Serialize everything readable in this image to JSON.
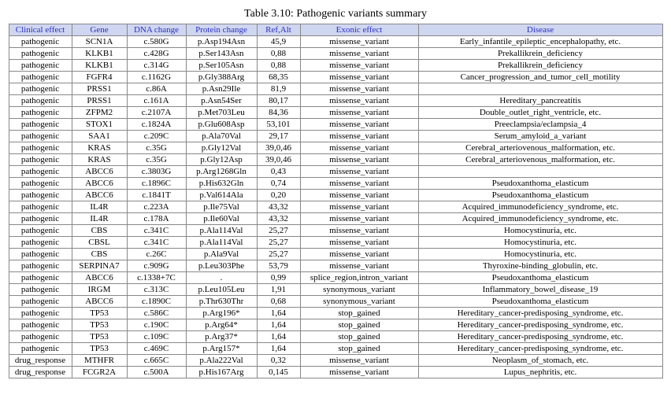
{
  "caption": "Table 3.10: Pathogenic variants summary",
  "headers": [
    "Clinical effect",
    "Gene",
    "DNA change",
    "Protein change",
    "Ref,Alt",
    "Exonic effect",
    "Disease"
  ],
  "header_bg": "#cfd6f0",
  "header_fg": "#2a2fbf",
  "border_color": "#888888",
  "font_family": "Times New Roman",
  "rows": [
    [
      "pathogenic",
      "SCN1A",
      "c.580G",
      "p.Asp194Asn",
      "45,9",
      "missense_variant",
      "Early_infantile_epileptic_encephalopathy, etc."
    ],
    [
      "pathogenic",
      "KLKB1",
      "c.428G",
      "p.Ser143Asn",
      "0,88",
      "missense_variant",
      "Prekallikrein_deficiency"
    ],
    [
      "pathogenic",
      "KLKB1",
      "c.314G",
      "p.Ser105Asn",
      "0,88",
      "missense_variant",
      "Prekallikrein_deficiency"
    ],
    [
      "pathogenic",
      "FGFR4",
      "c.1162G",
      "p.Gly388Arg",
      "68,35",
      "missense_variant",
      "Cancer_progression_and_tumor_cell_motility"
    ],
    [
      "pathogenic",
      "PRSS1",
      "c.86A",
      "p.Asn29Ile",
      "81,9",
      "missense_variant",
      ""
    ],
    [
      "pathogenic",
      "PRSS1",
      "c.161A",
      "p.Asn54Ser",
      "80,17",
      "missense_variant",
      "Hereditary_pancreatitis"
    ],
    [
      "pathogenic",
      "ZFPM2",
      "c.2107A",
      "p.Met703Leu",
      "84,36",
      "missense_variant",
      "Double_outlet_right_ventricle, etc."
    ],
    [
      "pathogenic",
      "STOX1",
      "c.1824A",
      "p.Glu608Asp",
      "53,101",
      "missense_variant",
      "Preeclampsia/eclampsia_4"
    ],
    [
      "pathogenic",
      "SAA1",
      "c.209C",
      "p.Ala70Val",
      "29,17",
      "missense_variant",
      "Serum_amyloid_a_variant"
    ],
    [
      "pathogenic",
      "KRAS",
      "c.35G",
      "p.Gly12Val",
      "39,0,46",
      "missense_variant",
      "Cerebral_arteriovenous_malformation, etc."
    ],
    [
      "pathogenic",
      "KRAS",
      "c.35G",
      "p.Gly12Asp",
      "39,0,46",
      "missense_variant",
      "Cerebral_arteriovenous_malformation, etc."
    ],
    [
      "pathogenic",
      "ABCC6",
      "c.3803G",
      "p.Arg1268Gln",
      "0,43",
      "missense_variant",
      ""
    ],
    [
      "pathogenic",
      "ABCC6",
      "c.1896C",
      "p.His632Gln",
      "0,74",
      "missense_variant",
      "Pseudoxanthoma_elasticum"
    ],
    [
      "pathogenic",
      "ABCC6",
      "c.1841T",
      "p.Val614Ala",
      "0,20",
      "missense_variant",
      "Pseudoxanthoma_elasticum"
    ],
    [
      "pathogenic",
      "IL4R",
      "c.223A",
      "p.Ile75Val",
      "43,32",
      "missense_variant",
      "Acquired_immunodeficiency_syndrome, etc."
    ],
    [
      "pathogenic",
      "IL4R",
      "c.178A",
      "p.Ile60Val",
      "43,32",
      "missense_variant",
      "Acquired_immunodeficiency_syndrome, etc."
    ],
    [
      "pathogenic",
      "CBS",
      "c.341C",
      "p.Ala114Val",
      "25,27",
      "missense_variant",
      "Homocystinuria, etc."
    ],
    [
      "pathogenic",
      "CBSL",
      "c.341C",
      "p.Ala114Val",
      "25,27",
      "missense_variant",
      "Homocystinuria, etc."
    ],
    [
      "pathogenic",
      "CBS",
      "c.26C",
      "p.Ala9Val",
      "25,27",
      "missense_variant",
      "Homocystinuria, etc."
    ],
    [
      "pathogenic",
      "SERPINA7",
      "c.909G",
      "p.Leu303Phe",
      "53,79",
      "missense_variant",
      "Thyroxine-binding_globulin, etc."
    ],
    [
      "pathogenic",
      "ABCC6",
      "c.1338+7C",
      ".",
      "0,99",
      "splice_region,intron_variant",
      "Pseudoxanthoma_elasticum"
    ],
    [
      "pathogenic",
      "IRGM",
      "c.313C",
      "p.Leu105Leu",
      "1,91",
      "synonymous_variant",
      "Inflammatory_bowel_disease_19"
    ],
    [
      "pathogenic",
      "ABCC6",
      "c.1890C",
      "p.Thr630Thr",
      "0,68",
      "synonymous_variant",
      "Pseudoxanthoma_elasticum"
    ],
    [
      "pathogenic",
      "TP53",
      "c.586C",
      "p.Arg196*",
      "1,64",
      "stop_gained",
      "Hereditary_cancer-predisposing_syndrome, etc."
    ],
    [
      "pathogenic",
      "TP53",
      "c.190C",
      "p.Arg64*",
      "1,64",
      "stop_gained",
      "Hereditary_cancer-predisposing_syndrome, etc."
    ],
    [
      "pathogenic",
      "TP53",
      "c.109C",
      "p.Arg37*",
      "1,64",
      "stop_gained",
      "Hereditary_cancer-predisposing_syndrome, etc."
    ],
    [
      "pathogenic",
      "TP53",
      "c.469C",
      "p.Arg157*",
      "1,64",
      "stop_gained",
      "Hereditary_cancer-predisposing_syndrome, etc."
    ],
    [
      "drug_response",
      "MTHFR",
      "c.665C",
      "p.Ala222Val",
      "0,32",
      "missense_variant",
      "Neoplasm_of_stomach, etc."
    ],
    [
      "drug_response",
      "FCGR2A",
      "c.500A",
      "p.His167Arg",
      "0,145",
      "missense_variant",
      "Lupus_nephritis, etc."
    ]
  ]
}
